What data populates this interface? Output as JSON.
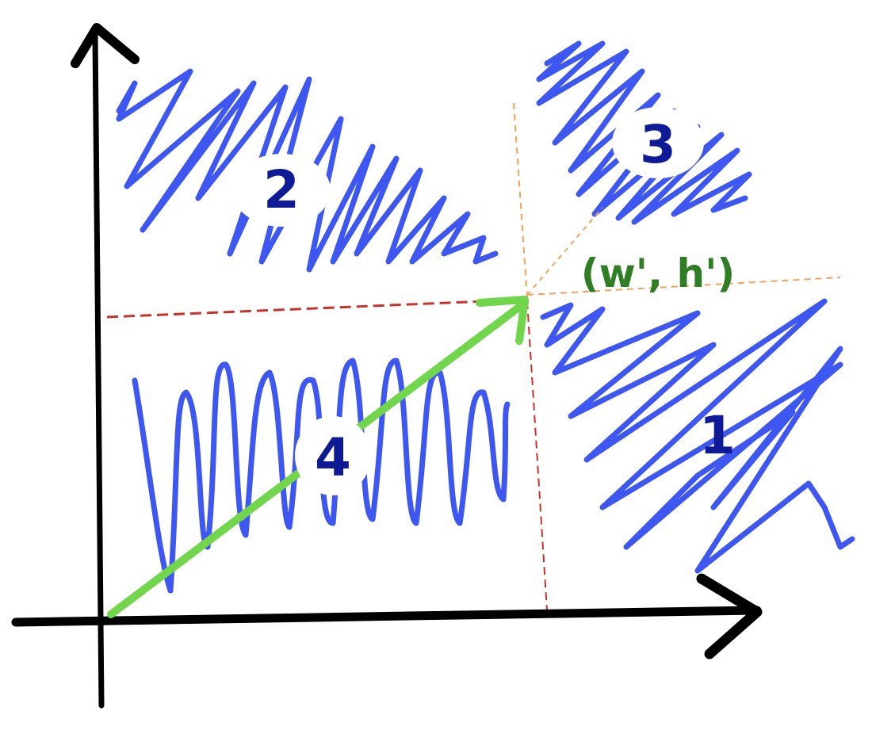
{
  "diagram": {
    "regions": [
      {
        "id": "region-1",
        "label": "1"
      },
      {
        "id": "region-2",
        "label": "2"
      },
      {
        "id": "region-3",
        "label": "3"
      },
      {
        "id": "region-4",
        "label": "4"
      }
    ],
    "point_label": "(w', h')"
  },
  "colors": {
    "axis": "#000000",
    "scribble": "#3d57f0",
    "region_label": "#0e1a96",
    "vector": "#72d64c",
    "point_label": "#2f7d24",
    "guide_red": "#c8322a",
    "guide_orange": "#f0a35a"
  }
}
